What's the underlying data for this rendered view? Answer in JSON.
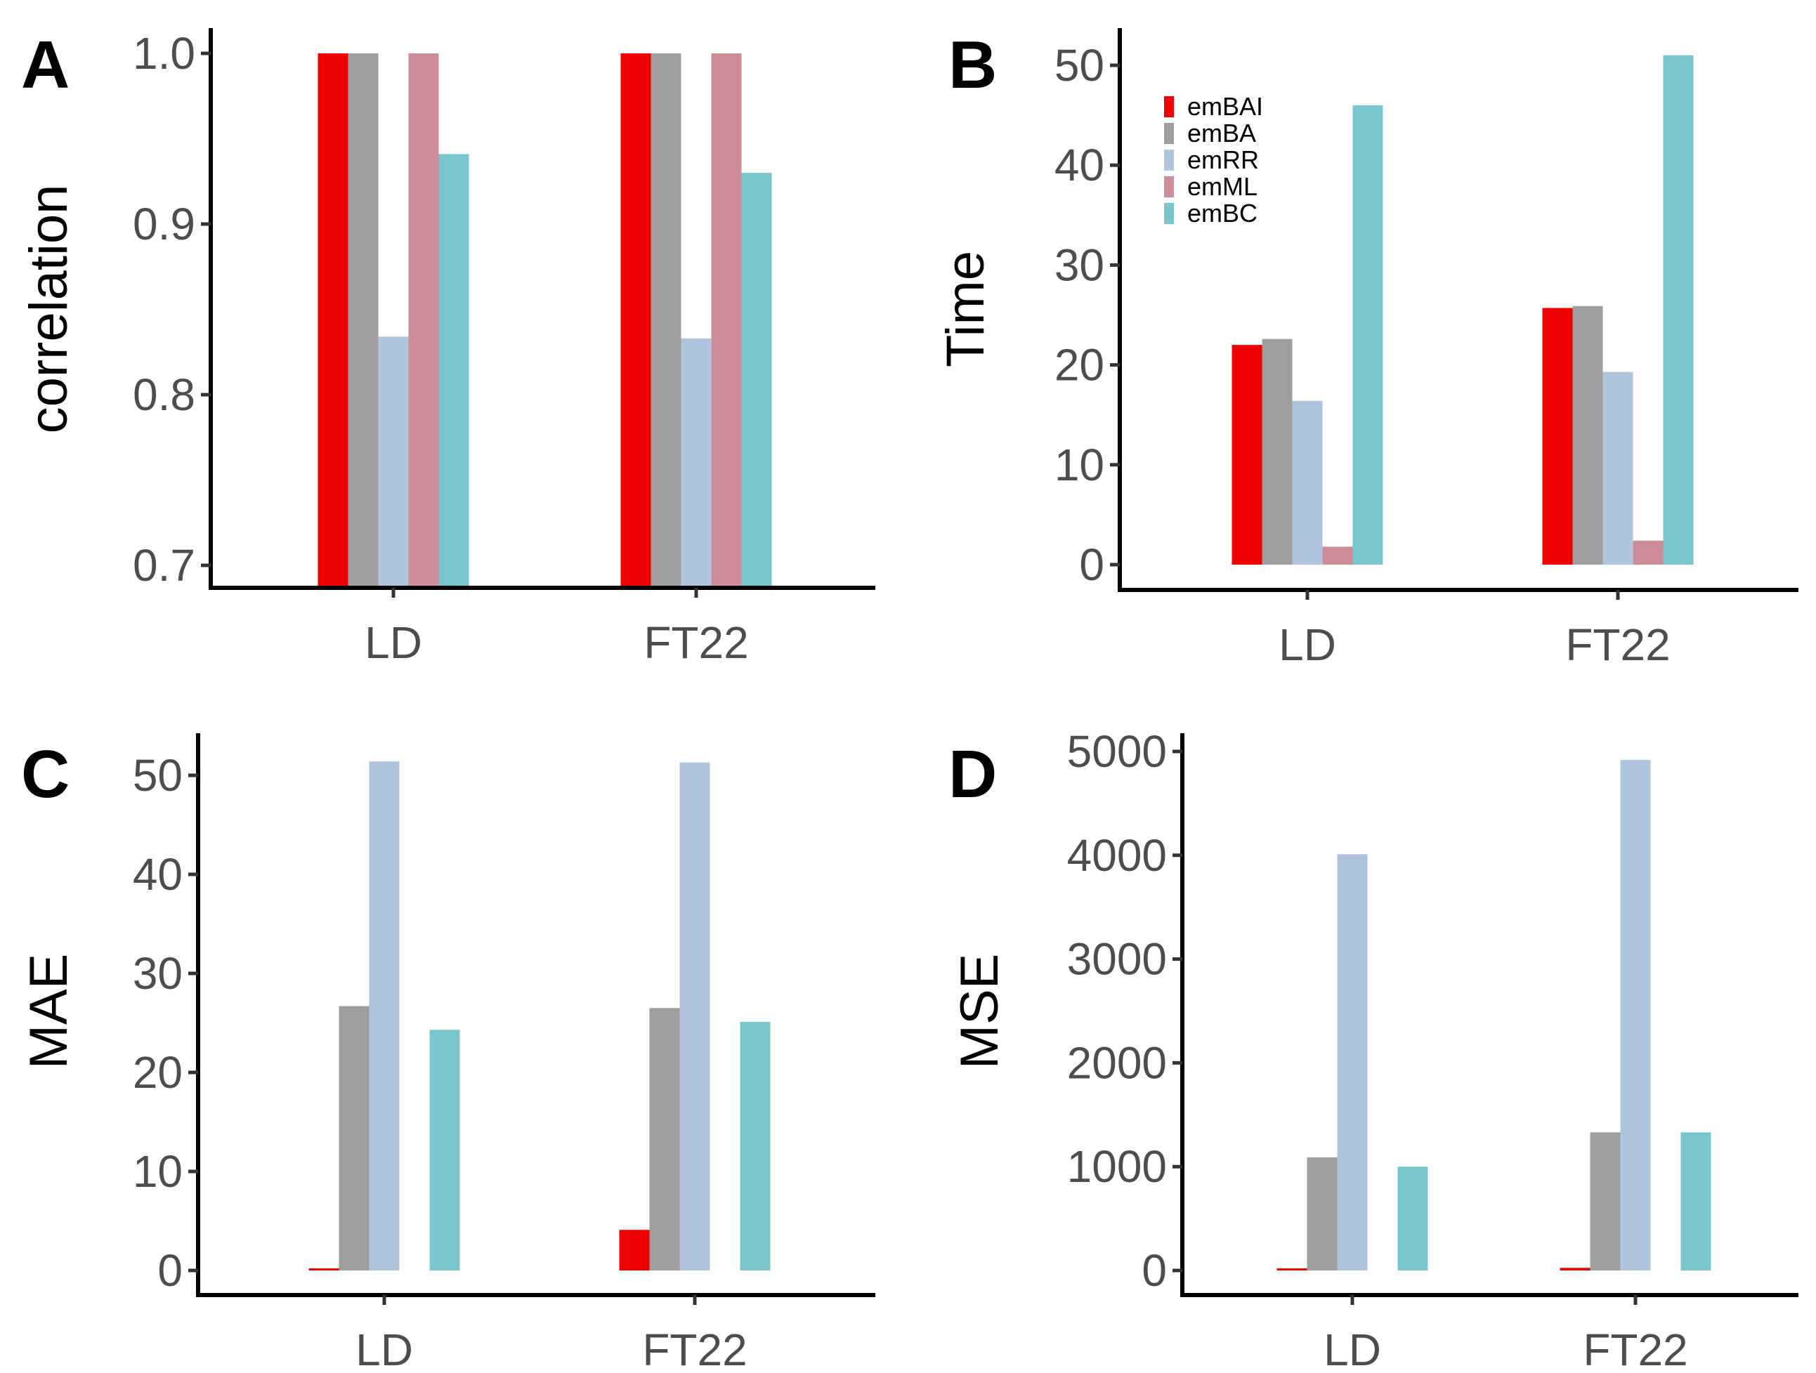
{
  "legend": [
    "emBAI",
    "emBA",
    "emRR",
    "emML",
    "emBC"
  ],
  "colors": {
    "emBAI": "#ee0000",
    "emBA": "#9e9e9e",
    "emRR": "#b0c4de",
    "emML": "#cd8c99",
    "emBC": "#78c5cc"
  },
  "chart_data": [
    {
      "panel": "A",
      "type": "bar",
      "ylabel": "correlation",
      "categories": [
        "LD",
        "FT22"
      ],
      "ylim": [
        0.686,
        1.0
      ],
      "yticks": [
        0.7,
        0.8,
        0.9,
        1.0
      ],
      "ytick_labels": [
        "0.7",
        "0.8",
        "0.9",
        "1.0"
      ],
      "series": [
        {
          "name": "emBAI",
          "values": [
            1.0,
            1.0
          ]
        },
        {
          "name": "emBA",
          "values": [
            1.0,
            1.0
          ]
        },
        {
          "name": "emRR",
          "values": [
            0.834,
            0.833
          ]
        },
        {
          "name": "emML",
          "values": [
            1.0,
            1.0
          ]
        },
        {
          "name": "emBC",
          "values": [
            0.941,
            0.93
          ]
        }
      ]
    },
    {
      "panel": "B",
      "type": "bar",
      "ylabel": "Time",
      "categories": [
        "LD",
        "FT22"
      ],
      "ylim": [
        0,
        51
      ],
      "yticks": [
        0,
        10,
        20,
        30,
        40,
        50
      ],
      "ytick_labels": [
        "0",
        "10",
        "20",
        "30",
        "40",
        "50"
      ],
      "legend": "top-left",
      "series": [
        {
          "name": "emBAI",
          "values": [
            22.0,
            25.7
          ]
        },
        {
          "name": "emBA",
          "values": [
            22.6,
            25.9
          ]
        },
        {
          "name": "emRR",
          "values": [
            16.4,
            19.3
          ]
        },
        {
          "name": "emML",
          "values": [
            1.8,
            2.4
          ]
        },
        {
          "name": "emBC",
          "values": [
            46.0,
            51.0
          ]
        }
      ]
    },
    {
      "panel": "C",
      "type": "bar",
      "ylabel": "MAE",
      "categories": [
        "LD",
        "FT22"
      ],
      "ylim": [
        0,
        51.4
      ],
      "yticks": [
        0,
        10,
        20,
        30,
        40,
        50
      ],
      "ytick_labels": [
        "0",
        "10",
        "20",
        "30",
        "40",
        "50"
      ],
      "series": [
        {
          "name": "emBAI",
          "values": [
            0.2,
            4.1
          ]
        },
        {
          "name": "emBA",
          "values": [
            26.7,
            26.5
          ]
        },
        {
          "name": "emRR",
          "values": [
            51.4,
            51.3
          ]
        },
        {
          "name": "emML",
          "values": [
            null,
            null
          ]
        },
        {
          "name": "emBC",
          "values": [
            24.3,
            25.1
          ]
        }
      ]
    },
    {
      "panel": "D",
      "type": "bar",
      "ylabel": "MSE",
      "categories": [
        "LD",
        "FT22"
      ],
      "ylim": [
        0,
        5000
      ],
      "yticks": [
        0,
        1000,
        2000,
        3000,
        4000,
        5000
      ],
      "ytick_labels": [
        "0",
        "1000",
        "2000",
        "3000",
        "4000",
        "5000"
      ],
      "series": [
        {
          "name": "emBAI",
          "values": [
            0,
            25
          ]
        },
        {
          "name": "emBA",
          "values": [
            1090,
            1330
          ]
        },
        {
          "name": "emRR",
          "values": [
            4010,
            4920
          ]
        },
        {
          "name": "emML",
          "values": [
            null,
            null
          ]
        },
        {
          "name": "emBC",
          "values": [
            1000,
            1330
          ]
        }
      ]
    }
  ]
}
